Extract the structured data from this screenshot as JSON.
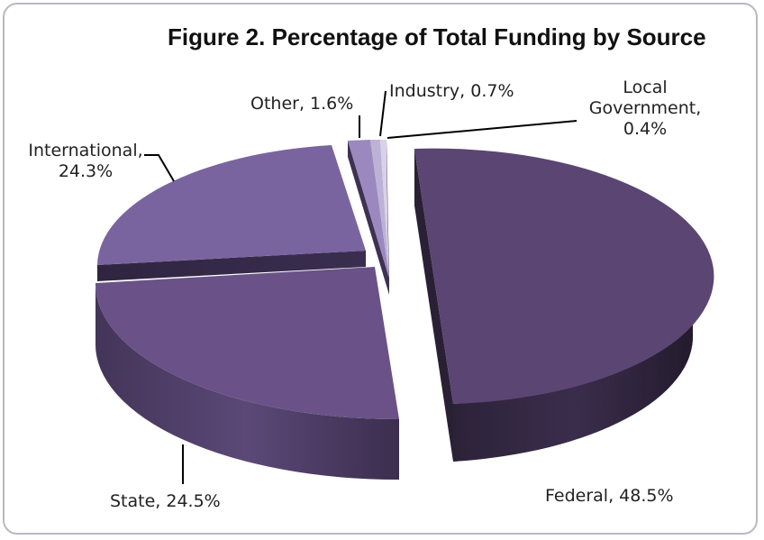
{
  "chart_data": {
    "type": "pie",
    "title": "Figure 2. Percentage of Total Funding  by Source",
    "slices": [
      {
        "label": "Federal",
        "value": 48.5,
        "text": "Federal, 48.5%",
        "color": "#5a4573"
      },
      {
        "label": "State",
        "value": 24.5,
        "text": "State, 24.5%",
        "color": "#6a5288"
      },
      {
        "label": "International",
        "value": 24.3,
        "text": "International, 24.3%",
        "text_line1": "International,",
        "text_line2": "24.3%",
        "color": "#7a64a0"
      },
      {
        "label": "Other",
        "value": 1.6,
        "text": "Other, 1.6%",
        "color": "#9a88bf"
      },
      {
        "label": "Industry",
        "value": 0.7,
        "text": "Industry, 0.7%",
        "color": "#bdb2d6"
      },
      {
        "label": "Local Government",
        "value": 0.4,
        "text": "Local Government, 0.4%",
        "text_line1": "Local",
        "text_line2": "Government,",
        "text_line3": "0.4%",
        "color": "#d8d1e8"
      }
    ]
  }
}
